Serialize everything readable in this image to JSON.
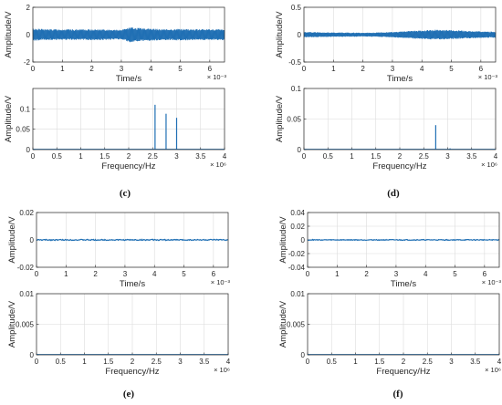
{
  "chart_data": [
    {
      "type": "line",
      "panel": "c-time",
      "xlabel": "Time/s",
      "ylabel": "Amplitude/V",
      "x_exponent": "× 10⁻³",
      "xlim": [
        0,
        6.5
      ],
      "ylim": [
        -2,
        2
      ],
      "xticks": [
        "0",
        "1",
        "2",
        "3",
        "4",
        "5",
        "6"
      ],
      "yticks": [
        "-2",
        "0",
        "2"
      ],
      "grid": true,
      "series": [
        {
          "x": [
            0,
            0.5,
            1,
            1.5,
            2,
            2.5,
            3,
            3.3,
            3.5,
            4,
            4.5,
            5,
            5.5,
            6,
            6.5
          ],
          "envelope": [
            0.45,
            0.4,
            0.4,
            0.38,
            0.4,
            0.38,
            0.35,
            0.55,
            0.5,
            0.45,
            0.4,
            0.42,
            0.4,
            0.4,
            0.4
          ]
        }
      ]
    },
    {
      "type": "line",
      "panel": "c-freq",
      "xlabel": "Frequency/Hz",
      "ylabel": "Amplitude/V",
      "x_exponent": "× 10⁶",
      "xlim": [
        0,
        4
      ],
      "ylim": [
        0,
        0.15
      ],
      "xticks": [
        "0",
        "0.5",
        "1",
        "1.5",
        "2",
        "2.5",
        "3",
        "3.5",
        "4"
      ],
      "yticks": [
        "0",
        "0.05",
        "0.1"
      ],
      "grid": true,
      "series": [
        {
          "peaks_x": [
            2.55,
            2.78,
            3.0
          ],
          "peaks_y": [
            0.11,
            0.088,
            0.078
          ]
        }
      ]
    },
    {
      "type": "line",
      "panel": "d-time",
      "xlabel": "Time/s",
      "ylabel": "Amplitude/V",
      "x_exponent": "× 10⁻³",
      "xlim": [
        0,
        6.5
      ],
      "ylim": [
        -0.5,
        0.5
      ],
      "xticks": [
        "0",
        "1",
        "2",
        "3",
        "4",
        "5",
        "6"
      ],
      "yticks": [
        "-0.5",
        "0",
        "0.5"
      ],
      "grid": true,
      "series": [
        {
          "x": [
            0,
            0.5,
            1,
            1.5,
            2,
            2.5,
            3,
            3.5,
            4,
            4.5,
            5,
            5.5,
            6,
            6.5
          ],
          "envelope": [
            0.05,
            0.045,
            0.04,
            0.038,
            0.035,
            0.04,
            0.05,
            0.065,
            0.08,
            0.09,
            0.085,
            0.07,
            0.06,
            0.055
          ]
        }
      ]
    },
    {
      "type": "line",
      "panel": "d-freq",
      "xlabel": "Frequency/Hz",
      "ylabel": "Amplitude/V",
      "x_exponent": "× 10⁶",
      "xlim": [
        0,
        4
      ],
      "ylim": [
        0,
        0.1
      ],
      "xticks": [
        "0",
        "0.5",
        "1",
        "1.5",
        "2",
        "2.5",
        "3",
        "3.5",
        "4"
      ],
      "yticks": [
        "0",
        "0.05",
        "0.1"
      ],
      "grid": true,
      "series": [
        {
          "peaks_x": [
            2.75,
            3.05
          ],
          "peaks_y": [
            0.04,
            0.002
          ]
        }
      ]
    },
    {
      "type": "line",
      "panel": "e-time",
      "xlabel": "Time/s",
      "ylabel": "Amplitude/V",
      "x_exponent": "× 10⁻³",
      "xlim": [
        0,
        6.5
      ],
      "ylim": [
        -0.02,
        0.02
      ],
      "xticks": [
        "0",
        "1",
        "2",
        "3",
        "4",
        "5",
        "6"
      ],
      "yticks": [
        "-0.02",
        "0",
        "0.02"
      ],
      "grid": true,
      "series": [
        {
          "envelope": [
            0.0004
          ]
        }
      ]
    },
    {
      "type": "line",
      "panel": "e-freq",
      "xlabel": "Frequency/Hz",
      "ylabel": "Amplitude/V",
      "x_exponent": "× 10⁶",
      "xlim": [
        0,
        4
      ],
      "ylim": [
        0,
        0.01
      ],
      "xticks": [
        "0",
        "0.5",
        "1",
        "1.5",
        "2",
        "2.5",
        "3",
        "3.5",
        "4"
      ],
      "yticks": [
        "0",
        "0.005",
        "0.01"
      ],
      "grid": true,
      "series": [
        {
          "peaks_x": [],
          "peaks_y": []
        }
      ]
    },
    {
      "type": "line",
      "panel": "f-time",
      "xlabel": "Time/s",
      "ylabel": "Amplitude/V",
      "x_exponent": "× 10⁻³",
      "xlim": [
        0,
        6.5
      ],
      "ylim": [
        -0.04,
        0.04
      ],
      "xticks": [
        "0",
        "1",
        "2",
        "3",
        "4",
        "5",
        "6"
      ],
      "yticks": [
        "-0.04",
        "-0.02",
        "0",
        "0.02",
        "0.04"
      ],
      "grid": true,
      "series": [
        {
          "envelope": [
            0.0006
          ]
        }
      ]
    },
    {
      "type": "line",
      "panel": "f-freq",
      "xlabel": "Frequency/Hz",
      "ylabel": "Amplitude/V",
      "x_exponent": "× 10⁶",
      "xlim": [
        0,
        4
      ],
      "ylim": [
        0,
        0.01
      ],
      "xticks": [
        "0",
        "0.5",
        "1",
        "1.5",
        "2",
        "2.5",
        "3",
        "3.5",
        "4"
      ],
      "yticks": [
        "0",
        "0.005",
        "0.01"
      ],
      "grid": true,
      "series": [
        {
          "peaks_x": [],
          "peaks_y": []
        }
      ]
    }
  ],
  "panel_labels": [
    "(c)",
    "(d)",
    "(e)",
    "(f)"
  ],
  "colors": {
    "signal": "#1f6fb4",
    "grid": "#dcdcdc",
    "axis": "#262626"
  }
}
